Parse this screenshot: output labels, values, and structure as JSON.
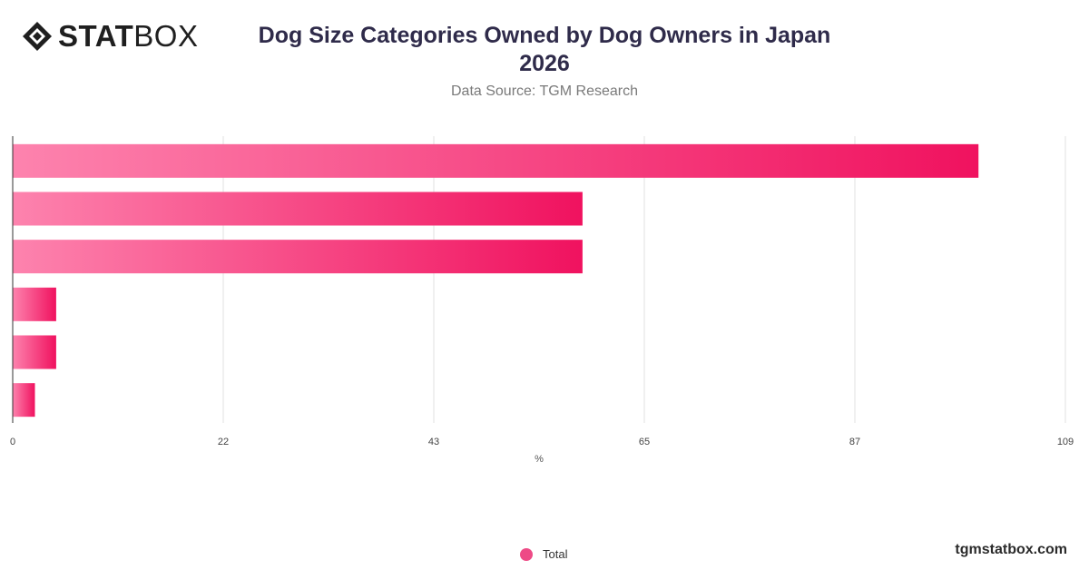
{
  "brand": {
    "logo_bold": "STAT",
    "logo_light": "BOX"
  },
  "header": {
    "title_line1": "Dog Size Categories Owned by Dog Owners in Japan",
    "title_line2": "2026",
    "subtitle": "Data Source: TGM Research"
  },
  "watermark": "tgmstatbox.com",
  "chart_data": {
    "type": "bar",
    "orientation": "horizontal",
    "categories": [
      "",
      "",
      "",
      "",
      "",
      ""
    ],
    "series": [
      {
        "name": "Total",
        "values": [
          100,
          59,
          59,
          4.5,
          4.5,
          2.3
        ],
        "color": "#ee4a86"
      }
    ],
    "xlim": [
      0,
      109
    ],
    "x_ticks": [
      "0",
      "22",
      "43",
      "65",
      "87",
      "109"
    ],
    "x_tick_values": [
      0,
      21.8,
      43.6,
      65.4,
      87.2,
      109
    ],
    "xlabel": "%",
    "ylabel": "",
    "grid": true,
    "legend_position": "bottom",
    "gradient_start": "#fd83ae",
    "gradient_end": "#f0125f"
  }
}
